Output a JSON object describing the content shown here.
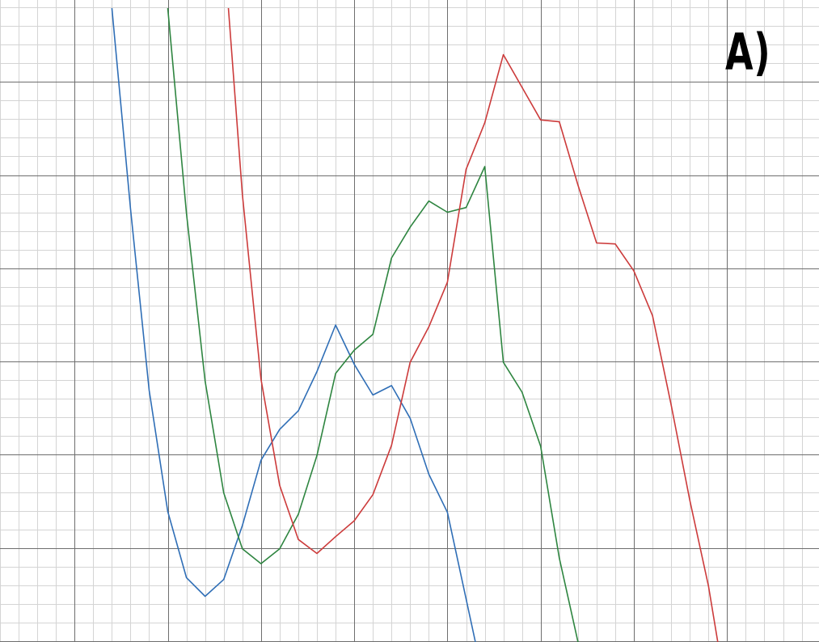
{
  "panel_label": "A)",
  "colors": {
    "background": "#ffffff",
    "grid_minor": "#d4d4d4",
    "grid_major": "#6e6e6e"
  },
  "chart_data": {
    "type": "line",
    "title": "",
    "xlabel": "",
    "ylabel": "",
    "xlim": [
      0,
      8.8
    ],
    "ylim": [
      0,
      6.8
    ],
    "grid": true,
    "series": [
      {
        "color": "#2f6eb6",
        "x": [
          0.4,
          0.6,
          0.8,
          1.0,
          1.2,
          1.4,
          1.6,
          1.8,
          2.0,
          2.2,
          2.4,
          2.6,
          2.8,
          3.0,
          3.2,
          3.4,
          3.6,
          3.8,
          4.0,
          4.3
        ],
        "y": [
          6.8,
          4.65,
          2.7,
          1.4,
          0.69,
          0.49,
          0.67,
          1.25,
          1.95,
          2.28,
          2.48,
          2.9,
          3.4,
          2.98,
          2.65,
          2.75,
          2.4,
          1.8,
          1.39,
          0
        ]
      },
      {
        "color": "#2e8540",
        "x": [
          1.0,
          1.2,
          1.4,
          1.6,
          1.8,
          2.0,
          2.2,
          2.4,
          2.6,
          2.8,
          3.0,
          3.2,
          3.4,
          3.6,
          3.8,
          4.0,
          4.2,
          4.4,
          4.6,
          4.8,
          5.0,
          5.2,
          5.4,
          5.6
        ],
        "y": [
          6.8,
          4.6,
          2.8,
          1.6,
          1.0,
          0.84,
          1.0,
          1.37,
          2.0,
          2.88,
          3.13,
          3.3,
          4.12,
          4.45,
          4.73,
          4.61,
          4.66,
          5.1,
          3.0,
          2.68,
          2.1,
          0.9,
          0.0,
          -0.2
        ]
      },
      {
        "color": "#cc3b3b",
        "x": [
          1.65,
          1.8,
          2.0,
          2.2,
          2.4,
          2.6,
          2.8,
          3.0,
          3.2,
          3.4,
          3.6,
          3.8,
          4.0,
          4.2,
          4.4,
          4.6,
          4.8,
          5.0,
          5.2,
          5.4,
          5.6,
          5.8,
          6.0,
          6.2,
          6.4,
          6.6,
          6.8,
          6.9
        ],
        "y": [
          6.8,
          4.8,
          2.82,
          1.68,
          1.1,
          0.95,
          1.13,
          1.3,
          1.58,
          2.11,
          3.0,
          3.38,
          3.86,
          5.07,
          5.57,
          6.3,
          5.95,
          5.6,
          5.58,
          4.9,
          4.28,
          4.27,
          3.98,
          3.5,
          2.54,
          1.52,
          0.6,
          0
        ]
      }
    ]
  }
}
